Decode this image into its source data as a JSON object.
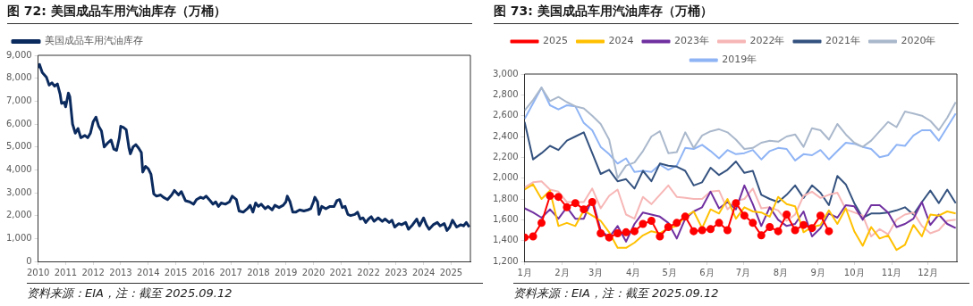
{
  "chart_data": [
    {
      "type": "line",
      "title": "图 72:  美国成品车用汽油库存（万桶）",
      "legend": "top left",
      "xlim": [
        2010,
        2025.7
      ],
      "xticks": [
        2010,
        2011,
        2012,
        2013,
        2014,
        2015,
        2016,
        2017,
        2018,
        2019,
        2020,
        2021,
        2022,
        2023,
        2024,
        2025
      ],
      "ylim": [
        0,
        9000
      ],
      "yticks": [
        0,
        {
          "value": 1000,
          "label": "1,000"
        },
        {
          "value": 2000,
          "label": "2,000"
        },
        {
          "value": 3000,
          "label": "3,000"
        },
        {
          "value": 4000,
          "label": "4,000"
        },
        {
          "value": 5000,
          "label": "5,000"
        },
        {
          "value": 6000,
          "label": "6,000"
        },
        {
          "value": 7000,
          "label": "7,000"
        },
        {
          "value": 8000,
          "label": "8,000"
        },
        {
          "value": 9000,
          "label": "9,000"
        }
      ],
      "x": [
        2010.0,
        2010.05,
        2010.15,
        2010.3,
        2010.4,
        2010.5,
        2010.6,
        2010.7,
        2010.8,
        2010.85,
        2010.95,
        2011.0,
        2011.1,
        2011.15,
        2011.25,
        2011.35,
        2011.45,
        2011.55,
        2011.7,
        2011.8,
        2011.9,
        2012.0,
        2012.1,
        2012.2,
        2012.3,
        2012.4,
        2012.55,
        2012.65,
        2012.75,
        2012.85,
        2012.95,
        2013.0,
        2013.1,
        2013.2,
        2013.3,
        2013.35,
        2013.45,
        2013.55,
        2013.65,
        2013.75,
        2013.8,
        2013.9,
        2014.0,
        2014.1,
        2014.2,
        2014.3,
        2014.45,
        2014.55,
        2014.7,
        2014.85,
        2014.95,
        2015.1,
        2015.2,
        2015.35,
        2015.5,
        2015.65,
        2015.75,
        2015.9,
        2016.0,
        2016.1,
        2016.25,
        2016.35,
        2016.45,
        2016.55,
        2016.65,
        2016.8,
        2016.95,
        2017.05,
        2017.2,
        2017.3,
        2017.45,
        2017.6,
        2017.7,
        2017.8,
        2017.9,
        2018.0,
        2018.1,
        2018.25,
        2018.35,
        2018.5,
        2018.6,
        2018.75,
        2018.9,
        2019.0,
        2019.05,
        2019.15,
        2019.25,
        2019.35,
        2019.5,
        2019.65,
        2019.8,
        2019.9,
        2020.0,
        2020.05,
        2020.15,
        2020.2,
        2020.3,
        2020.45,
        2020.6,
        2020.75,
        2020.85,
        2020.95,
        2021.05,
        2021.15,
        2021.25,
        2021.35,
        2021.5,
        2021.6,
        2021.7,
        2021.8,
        2021.9,
        2022.0,
        2022.1,
        2022.2,
        2022.35,
        2022.5,
        2022.6,
        2022.75,
        2022.85,
        2022.95,
        2023.1,
        2023.2,
        2023.35,
        2023.45,
        2023.6,
        2023.75,
        2023.85,
        2024.0,
        2024.1,
        2024.2,
        2024.35,
        2024.5,
        2024.6,
        2024.75,
        2024.85,
        2024.95,
        2025.05,
        2025.2,
        2025.35,
        2025.45,
        2025.55,
        2025.66
      ],
      "series": [
        {
          "name": "美国成品车用汽油库存",
          "color": "#0b2a5e",
          "values": [
            8450,
            8600,
            8250,
            8050,
            7700,
            7800,
            7650,
            7750,
            7300,
            6900,
            6950,
            6750,
            7350,
            7200,
            6000,
            5600,
            5800,
            5400,
            5500,
            5400,
            5600,
            6100,
            6300,
            5900,
            5700,
            5000,
            5200,
            5300,
            4900,
            4850,
            5400,
            5900,
            5850,
            5750,
            4950,
            4700,
            5000,
            5100,
            4950,
            4750,
            3900,
            4150,
            4050,
            3800,
            2950,
            2850,
            2900,
            2800,
            2700,
            2900,
            3100,
            2900,
            3050,
            2650,
            2600,
            2500,
            2700,
            2800,
            2750,
            2850,
            2650,
            2500,
            2600,
            2400,
            2550,
            2500,
            2600,
            2850,
            2700,
            2200,
            2150,
            2300,
            2450,
            2150,
            2550,
            2400,
            2500,
            2300,
            2400,
            2250,
            2450,
            2350,
            2450,
            2600,
            2850,
            2600,
            2150,
            2150,
            2250,
            2200,
            2250,
            2300,
            2600,
            2800,
            2600,
            2050,
            2400,
            2300,
            2400,
            2400,
            2650,
            2700,
            2350,
            2400,
            2050,
            2000,
            2050,
            2150,
            1850,
            1900,
            1700,
            1850,
            1950,
            1750,
            1900,
            1750,
            1850,
            1700,
            1800,
            1500,
            1650,
            1600,
            1700,
            1400,
            1600,
            1850,
            1550,
            1900,
            1600,
            1400,
            1600,
            1700,
            1550,
            1650,
            1350,
            1500,
            1800,
            1500,
            1600,
            1550,
            1700,
            1500
          ]
        }
      ],
      "annotations": [
        "资料来源：EIA，注：截至 2025.09.12"
      ]
    },
    {
      "type": "line",
      "title": "图 73:  美国成品车用汽油库存（万桶）",
      "legend": "top",
      "xlim": [
        "--01-01",
        "--12-25"
      ],
      "xticks": [
        {
          "value": "--01-01",
          "label": "1月"
        },
        {
          "value": "--02-01",
          "label": "2月"
        },
        {
          "value": "--03-01",
          "label": "3月"
        },
        {
          "value": "--04-01",
          "label": "4月"
        },
        {
          "value": "--05-01",
          "label": "5月"
        },
        {
          "value": "--06-01",
          "label": "6月"
        },
        {
          "value": "--07-01",
          "label": "7月"
        },
        {
          "value": "--08-01",
          "label": "8月"
        },
        {
          "value": "--09-01",
          "label": "9月"
        },
        {
          "value": "--10-01",
          "label": "10月"
        },
        {
          "value": "--11-01",
          "label": "11月"
        },
        {
          "value": "--12-01",
          "label": "12月"
        }
      ],
      "ylim": [
        1200,
        3000
      ],
      "yticks": [
        {
          "value": 1200,
          "label": "1,200"
        },
        {
          "value": 1400,
          "label": "1,400"
        },
        {
          "value": 1600,
          "label": "1,600"
        },
        {
          "value": 1800,
          "label": "1,800"
        },
        {
          "value": 2000,
          "label": "2,000"
        },
        {
          "value": 2200,
          "label": "2,200"
        },
        {
          "value": 2400,
          "label": "2,400"
        },
        {
          "value": 2600,
          "label": "2,600"
        },
        {
          "value": 2800,
          "label": "2,800"
        },
        {
          "value": 3000,
          "label": "3,000"
        }
      ],
      "x": [
        "--01-01",
        "--01-08",
        "--01-15",
        "--01-22",
        "--01-29",
        "--02-05",
        "--02-12",
        "--02-19",
        "--02-26",
        "--03-05",
        "--03-12",
        "--03-19",
        "--03-26",
        "--04-02",
        "--04-09",
        "--04-16",
        "--04-23",
        "--04-30",
        "--05-07",
        "--05-14",
        "--05-21",
        "--05-28",
        "--06-04",
        "--06-11",
        "--06-18",
        "--06-25",
        "--07-02",
        "--07-09",
        "--07-16",
        "--07-23",
        "--07-30",
        "--08-06",
        "--08-13",
        "--08-20",
        "--08-27",
        "--09-03",
        "--09-10",
        "--09-17",
        "--09-24",
        "--10-01",
        "--10-08",
        "--10-15",
        "--10-22",
        "--10-29",
        "--11-05",
        "--11-12",
        "--11-19",
        "--11-26",
        "--12-03",
        "--12-10",
        "--12-17",
        "--12-24"
      ],
      "series": [
        {
          "name": "2019年",
          "color": "#8fb4f5",
          "values": [
            2570,
            2720,
            2870,
            2700,
            2660,
            2700,
            2690,
            2530,
            2460,
            2300,
            2230,
            2140,
            2190,
            2060,
            2070,
            2060,
            2130,
            2080,
            2120,
            2290,
            2280,
            2320,
            2260,
            2190,
            2270,
            2230,
            2240,
            2270,
            2180,
            2260,
            2290,
            2280,
            2170,
            2230,
            2220,
            2270,
            2180,
            2260,
            2340,
            2330,
            2300,
            2280,
            2200,
            2220,
            2320,
            2310,
            2410,
            2460,
            2460,
            2360,
            2490,
            2620
          ]
        },
        {
          "name": "2020年",
          "color": "#aab8cc",
          "values": [
            2650,
            2750,
            2870,
            2740,
            2780,
            2730,
            2690,
            2670,
            2600,
            2520,
            2370,
            2000,
            2120,
            2150,
            2260,
            2400,
            2450,
            2240,
            2250,
            2440,
            2290,
            2410,
            2450,
            2470,
            2440,
            2370,
            2280,
            2290,
            2340,
            2360,
            2350,
            2400,
            2420,
            2300,
            2480,
            2460,
            2370,
            2520,
            2420,
            2340,
            2300,
            2360,
            2450,
            2540,
            2490,
            2640,
            2620,
            2600,
            2550,
            2460,
            2580,
            2730
          ]
        },
        {
          "name": "2021年",
          "color": "#34527f",
          "values": [
            2540,
            2180,
            2240,
            2310,
            2270,
            2360,
            2400,
            2440,
            2240,
            2040,
            2080,
            1970,
            1990,
            1900,
            2070,
            1970,
            2140,
            2120,
            2110,
            2070,
            1930,
            1960,
            2100,
            2030,
            2080,
            2160,
            2050,
            2070,
            1840,
            1800,
            1770,
            1840,
            1930,
            1810,
            1930,
            1860,
            1740,
            2020,
            1940,
            1760,
            1620,
            1660,
            1660,
            1670,
            1690,
            1720,
            1650,
            1770,
            1880,
            1760,
            1890,
            1760
          ]
        },
        {
          "name": "2022年",
          "color": "#f7b6b6",
          "values": [
            1910,
            1960,
            1970,
            1890,
            1870,
            1770,
            1770,
            1770,
            1900,
            1710,
            1830,
            1890,
            1650,
            1610,
            1820,
            1750,
            1840,
            1930,
            1820,
            1810,
            1800,
            1800,
            1870,
            1880,
            1700,
            1780,
            1800,
            1900,
            1710,
            1720,
            1690,
            1590,
            1650,
            1830,
            1870,
            1810,
            1840,
            1860,
            1700,
            1670,
            1640,
            1440,
            1510,
            1460,
            1600,
            1650,
            1670,
            1540,
            1470,
            1500,
            1590,
            1600
          ]
        },
        {
          "name": "2023年",
          "color": "#7030a0",
          "values": [
            1710,
            1670,
            1620,
            1700,
            1610,
            1720,
            1610,
            1610,
            1800,
            1500,
            1430,
            1540,
            1390,
            1560,
            1670,
            1650,
            1630,
            1570,
            1420,
            1610,
            1680,
            1720,
            1870,
            1710,
            1770,
            1700,
            1930,
            1750,
            1540,
            1720,
            1600,
            1540,
            1560,
            1680,
            1440,
            1520,
            1660,
            1620,
            1740,
            1730,
            1600,
            1740,
            1740,
            1670,
            1530,
            1560,
            1610,
            1770,
            1550,
            1650,
            1560,
            1520
          ]
        },
        {
          "name": "2024",
          "color": "#ffc000",
          "values": [
            1890,
            1940,
            1800,
            1880,
            1540,
            1570,
            1540,
            1690,
            1640,
            1590,
            1480,
            1330,
            1330,
            1380,
            1450,
            1490,
            1470,
            1520,
            1540,
            1630,
            1680,
            1520,
            1700,
            1660,
            1800,
            1610,
            1720,
            1680,
            1670,
            1630,
            1820,
            1750,
            1730,
            1480,
            1530,
            1550,
            1690,
            1560,
            1710,
            1490,
            1350,
            1530,
            1420,
            1450,
            1310,
            1360,
            1550,
            1440,
            1650,
            1640,
            1680,
            1660
          ]
        },
        {
          "name": "2025",
          "color": "#ff0000",
          "marker": "circle",
          "values": [
            1430,
            1440,
            1570,
            1830,
            1820,
            1720,
            1760,
            1700,
            1770,
            1470,
            1430,
            1470,
            1480,
            1490,
            1560,
            1590,
            1440,
            1530,
            1570,
            1630,
            1490,
            1500,
            1510,
            1570,
            1500,
            1760,
            1640,
            1570,
            1450,
            1530,
            1490,
            1650,
            1500,
            1550,
            1520,
            1640,
            1490,
            null,
            null,
            null,
            null,
            null,
            null,
            null,
            null,
            null,
            null,
            null,
            null,
            null,
            null,
            null
          ]
        }
      ],
      "annotations": [
        "资料来源：EIA，注：截至 2025.09.12"
      ]
    }
  ]
}
